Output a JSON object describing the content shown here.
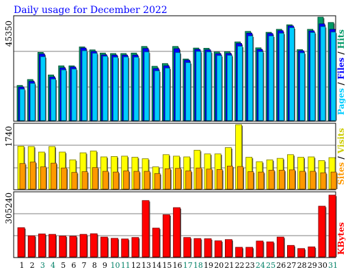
{
  "title": "Daily usage for December 2022",
  "chart_data": [
    {
      "type": "bar",
      "panel": "hits-files-pages",
      "categories": [
        "1",
        "2",
        "3",
        "4",
        "5",
        "6",
        "7",
        "8",
        "9",
        "10",
        "11",
        "12",
        "13",
        "14",
        "15",
        "16",
        "17",
        "18",
        "19",
        "20",
        "21",
        "22",
        "23",
        "24",
        "25",
        "26",
        "27",
        "28",
        "29",
        "30",
        "31"
      ],
      "weekend_days": [
        "3",
        "4",
        "10",
        "11",
        "17",
        "18",
        "24",
        "25",
        "31"
      ],
      "ymax": 45350,
      "ymax_label": "45350",
      "series": [
        {
          "name": "Hits",
          "color": "#009966",
          "values": [
            15400,
            18000,
            29900,
            20000,
            24000,
            24000,
            32300,
            31000,
            29600,
            29400,
            29400,
            29600,
            32500,
            23800,
            25000,
            32500,
            27000,
            31800,
            31700,
            30100,
            30200,
            34500,
            39100,
            31900,
            38700,
            40000,
            42000,
            31100,
            40000,
            45350,
            43000
          ]
        },
        {
          "name": "Files",
          "color": "#0000ff",
          "values": [
            14700,
            17200,
            29200,
            19100,
            23100,
            23500,
            31800,
            30300,
            28800,
            28700,
            28700,
            28700,
            31600,
            22800,
            24000,
            31500,
            26500,
            31200,
            31000,
            29300,
            29400,
            33800,
            38300,
            31200,
            38200,
            39400,
            41500,
            30600,
            39300,
            42400,
            40000
          ]
        },
        {
          "name": "Pages",
          "color": "#00ccff",
          "values": [
            13800,
            16300,
            28000,
            18200,
            22200,
            22600,
            30600,
            29500,
            28200,
            27800,
            27900,
            27800,
            30100,
            21800,
            23000,
            29800,
            25400,
            30300,
            30100,
            28500,
            28600,
            32600,
            37100,
            30200,
            37100,
            38300,
            40700,
            29700,
            38600,
            41200,
            38800
          ]
        }
      ]
    },
    {
      "type": "bar",
      "panel": "visits-sites",
      "categories": [
        "1",
        "2",
        "3",
        "4",
        "5",
        "6",
        "7",
        "8",
        "9",
        "10",
        "11",
        "12",
        "13",
        "14",
        "15",
        "16",
        "17",
        "18",
        "19",
        "20",
        "21",
        "22",
        "23",
        "24",
        "25",
        "26",
        "27",
        "28",
        "29",
        "30",
        "31"
      ],
      "ymax": 1740,
      "ymax_label": "1740",
      "series": [
        {
          "name": "Visits",
          "color": "#ffff00",
          "values": [
            1160,
            1150,
            1000,
            1150,
            1000,
            790,
            980,
            1030,
            870,
            880,
            890,
            860,
            820,
            600,
            930,
            890,
            870,
            1050,
            950,
            950,
            1120,
            1740,
            860,
            740,
            790,
            830,
            930,
            860,
            870,
            770,
            850
          ]
        },
        {
          "name": "Sites",
          "color": "#ff9900",
          "values": [
            690,
            730,
            600,
            700,
            570,
            450,
            470,
            580,
            480,
            460,
            490,
            480,
            480,
            420,
            550,
            560,
            490,
            570,
            540,
            530,
            620,
            610,
            470,
            460,
            510,
            510,
            520,
            480,
            480,
            440,
            460
          ]
        }
      ]
    },
    {
      "type": "bar",
      "panel": "kbytes",
      "categories": [
        "1",
        "2",
        "3",
        "4",
        "5",
        "6",
        "7",
        "8",
        "9",
        "10",
        "11",
        "12",
        "13",
        "14",
        "15",
        "16",
        "17",
        "18",
        "19",
        "20",
        "21",
        "22",
        "23",
        "24",
        "25",
        "26",
        "27",
        "28",
        "29",
        "30",
        "31"
      ],
      "ymax": 305240,
      "ymax_label": "305240",
      "series": [
        {
          "name": "KBytes",
          "color": "#ff0000",
          "values": [
            140000,
            101000,
            110000,
            108000,
            100000,
            99000,
            108000,
            111000,
            95000,
            89000,
            86000,
            93000,
            270000,
            138000,
            202000,
            236000,
            93000,
            88000,
            87000,
            77000,
            83000,
            46000,
            46000,
            76000,
            72000,
            95000,
            55000,
            40000,
            48000,
            243000,
            296000
          ]
        }
      ]
    }
  ]
}
